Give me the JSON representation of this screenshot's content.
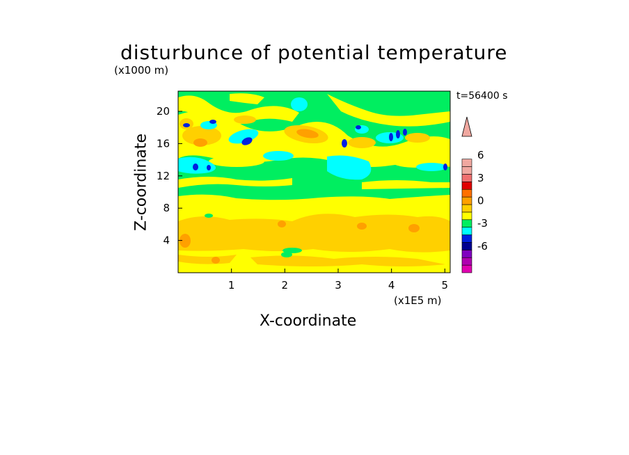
{
  "chart_data": {
    "type": "heatmap",
    "title": "disturbunce of potential temperature",
    "ylabel": "Z-coordinate",
    "xlabel": "X-coordinate",
    "y_unit": "(x1000 m)",
    "x_unit": "(x1E5 m)",
    "time_label": "t=56400 s",
    "xlim": [
      0,
      5.1
    ],
    "ylim": [
      0,
      22.5
    ],
    "x_ticks": [
      "1",
      "2",
      "3",
      "4",
      "5"
    ],
    "x_tick_values": [
      1,
      2,
      3,
      4,
      5
    ],
    "y_ticks": [
      "4",
      "8",
      "12",
      "16",
      "20"
    ],
    "y_tick_values": [
      4,
      8,
      12,
      16,
      20
    ],
    "colorbar": {
      "levels": [
        -9,
        -8,
        -7,
        -6,
        -5,
        -4,
        -3,
        -2,
        -1,
        0,
        1,
        2,
        3,
        4,
        5,
        6,
        7,
        9
      ],
      "colors": [
        "#e000b0",
        "#b000b0",
        "#8000c0",
        "#000090",
        "#0020e0",
        "#00ffff",
        "#00ee60",
        "#ffff00",
        "#ffd000",
        "#ffa000",
        "#ff7000",
        "#e00000",
        "#f07070",
        "#f0a8a0",
        "#f0a8a0"
      ],
      "tick_labels": [
        "6",
        "3",
        "0",
        "-3",
        "-6"
      ],
      "tick_values": [
        6,
        3,
        0,
        -3,
        -6
      ]
    },
    "grid": false
  }
}
